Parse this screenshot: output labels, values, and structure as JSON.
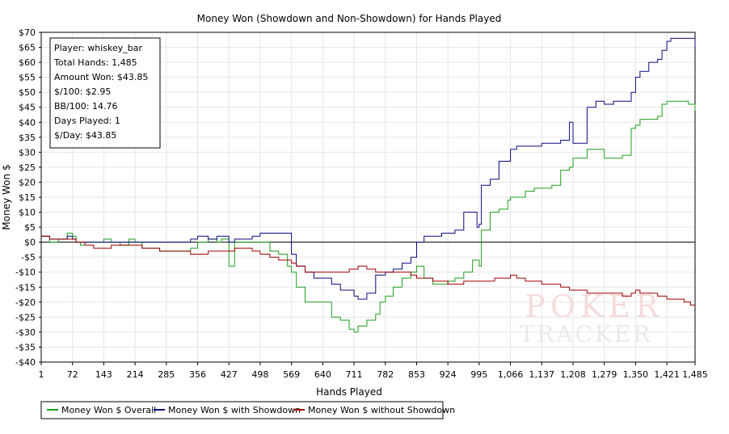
{
  "chart_data": {
    "type": "line",
    "title": "Money Won (Showdown and Non-Showdown) for Hands Played",
    "xlabel": "Hands Played",
    "ylabel": "Money Won $",
    "xlim": [
      1,
      1485
    ],
    "ylim": [
      -40,
      70
    ],
    "x_ticks": [
      1,
      72,
      143,
      214,
      285,
      356,
      427,
      498,
      569,
      640,
      711,
      782,
      853,
      924,
      995,
      1066,
      1137,
      1208,
      1279,
      1350,
      1421,
      1485
    ],
    "x_tick_labels": [
      "1",
      "72",
      "143",
      "214",
      "285",
      "356",
      "427",
      "498",
      "569",
      "640",
      "711",
      "782",
      "853",
      "924",
      "995",
      "1,066",
      "1,137",
      "1,208",
      "1,279",
      "1,350",
      "1,421",
      "1,485"
    ],
    "y_ticks": [
      -40,
      -35,
      -30,
      -25,
      -20,
      -15,
      -10,
      -5,
      0,
      5,
      10,
      15,
      20,
      25,
      30,
      35,
      40,
      45,
      50,
      55,
      60,
      65,
      70
    ],
    "y_tick_labels": [
      "-$40",
      "-$35",
      "-$30",
      "-$25",
      "-$20",
      "-$15",
      "-$10",
      "-$5",
      "$0",
      "$5",
      "$10",
      "$15",
      "$20",
      "$25",
      "$30",
      "$35",
      "$40",
      "$45",
      "$50",
      "$55",
      "$60",
      "$65",
      "$70"
    ],
    "grid": true,
    "stats_box": [
      "Player: whiskey_bar",
      "Total Hands: 1,485",
      "Amount Won: $43.85",
      "$/100: $2.95",
      "BB/100: 14.76",
      "Days Played: 1",
      "$/Day: $43.85"
    ],
    "watermark": [
      "POKER",
      "TRACKER"
    ],
    "legend_position": "bottom-left",
    "series": [
      {
        "name": "Money Won $ Overall",
        "color": "#1e9e1e",
        "x": [
          1,
          20,
          40,
          60,
          72,
          80,
          90,
          100,
          120,
          143,
          160,
          180,
          200,
          214,
          230,
          250,
          270,
          285,
          300,
          320,
          340,
          356,
          380,
          400,
          410,
          427,
          440,
          460,
          480,
          498,
          520,
          540,
          560,
          569,
          580,
          600,
          620,
          640,
          660,
          680,
          700,
          711,
          720,
          740,
          760,
          770,
          782,
          800,
          820,
          840,
          853,
          870,
          890,
          910,
          924,
          940,
          960,
          980,
          990,
          995,
          1000,
          1020,
          1040,
          1060,
          1066,
          1080,
          1100,
          1120,
          1137,
          1160,
          1180,
          1200,
          1208,
          1220,
          1240,
          1260,
          1279,
          1300,
          1320,
          1340,
          1350,
          1360,
          1380,
          1400,
          1410,
          1421,
          1430,
          1450,
          1470,
          1485
        ],
        "values": [
          2,
          0,
          1,
          3,
          2,
          0,
          -1,
          0,
          0,
          1,
          0,
          -1,
          1,
          0,
          -2,
          -2,
          -3,
          -3,
          -3,
          -3,
          -2,
          0,
          1,
          0,
          1,
          -8,
          0,
          0,
          0,
          0,
          -3,
          -4,
          -8,
          -10,
          -15,
          -20,
          -20,
          -20,
          -25,
          -26,
          -29,
          -30,
          -28,
          -26,
          -24,
          -20,
          -18,
          -15,
          -12,
          -10,
          -8,
          -12,
          -14,
          -14,
          -13,
          -12,
          -10,
          -6,
          -6,
          -8,
          4,
          10,
          11,
          14,
          15,
          15,
          17,
          18,
          18,
          19,
          24,
          25,
          28,
          28,
          31,
          31,
          28,
          28,
          29,
          38,
          39,
          41,
          41,
          42,
          46,
          47,
          47,
          47,
          46,
          43.85
        ]
      },
      {
        "name": "Money Won $ with Showdown",
        "color": "#0a0a80",
        "x": [
          1,
          20,
          40,
          60,
          72,
          80,
          100,
          143,
          160,
          180,
          200,
          214,
          230,
          250,
          270,
          285,
          300,
          320,
          340,
          356,
          380,
          400,
          420,
          427,
          440,
          460,
          480,
          498,
          520,
          540,
          560,
          569,
          580,
          600,
          620,
          640,
          660,
          680,
          700,
          711,
          720,
          740,
          760,
          770,
          782,
          800,
          820,
          840,
          853,
          870,
          890,
          910,
          924,
          940,
          960,
          980,
          990,
          995,
          1000,
          1020,
          1040,
          1066,
          1080,
          1100,
          1120,
          1137,
          1160,
          1180,
          1200,
          1208,
          1220,
          1240,
          1260,
          1279,
          1300,
          1320,
          1340,
          1350,
          1360,
          1380,
          1400,
          1410,
          1421,
          1430,
          1450,
          1470,
          1485
        ],
        "values": [
          2,
          1,
          1,
          2,
          1,
          0,
          0,
          0,
          0,
          0,
          0,
          0,
          0,
          0,
          0,
          0,
          0,
          0,
          1,
          2,
          1,
          2,
          2,
          0,
          1,
          1,
          2,
          3,
          3,
          3,
          3,
          -4,
          -8,
          -10,
          -12,
          -12,
          -14,
          -16,
          -16,
          -18,
          -19,
          -17,
          -11,
          -11,
          -10,
          -9,
          -7,
          -5,
          0,
          2,
          2,
          3,
          3,
          4,
          10,
          10,
          5,
          6,
          19,
          21,
          27,
          31,
          32,
          32,
          32,
          33,
          33,
          34,
          40,
          33,
          33,
          45,
          47,
          46,
          47,
          47,
          50,
          55,
          57,
          60,
          61,
          64,
          67,
          68,
          68,
          68,
          65
        ]
      },
      {
        "name": "Money Won $ without Showdown",
        "color": "#a00000",
        "x": [
          1,
          20,
          40,
          60,
          72,
          80,
          100,
          120,
          143,
          160,
          180,
          200,
          214,
          230,
          250,
          270,
          285,
          300,
          320,
          340,
          356,
          380,
          400,
          427,
          440,
          460,
          480,
          498,
          520,
          540,
          560,
          569,
          580,
          600,
          620,
          640,
          660,
          680,
          700,
          711,
          720,
          740,
          760,
          782,
          800,
          820,
          840,
          853,
          870,
          890,
          910,
          924,
          940,
          960,
          980,
          995,
          1010,
          1030,
          1050,
          1066,
          1080,
          1100,
          1120,
          1137,
          1160,
          1180,
          1200,
          1208,
          1220,
          1240,
          1260,
          1279,
          1300,
          1320,
          1340,
          1350,
          1360,
          1380,
          1400,
          1421,
          1440,
          1460,
          1475,
          1485
        ],
        "values": [
          2,
          1,
          1,
          1,
          1,
          0,
          -1,
          -2,
          -2,
          -1,
          -1,
          -1,
          -1,
          -2,
          -2,
          -3,
          -3,
          -3,
          -3,
          -4,
          -4,
          -3,
          -3,
          -3,
          -2,
          -2,
          -3,
          -4,
          -5,
          -6,
          -6,
          -7,
          -8,
          -10,
          -10,
          -10,
          -10,
          -10,
          -9,
          -9,
          -8,
          -9,
          -10,
          -10,
          -10,
          -10,
          -11,
          -12,
          -12,
          -13,
          -13,
          -14,
          -14,
          -13,
          -13,
          -13,
          -13,
          -12,
          -12,
          -11,
          -12,
          -13,
          -13,
          -14,
          -14,
          -15,
          -16,
          -16,
          -16,
          -17,
          -17,
          -17,
          -17,
          -18,
          -17,
          -16,
          -17,
          -17,
          -18,
          -19,
          -19,
          -20,
          -21,
          -21
        ]
      }
    ]
  }
}
